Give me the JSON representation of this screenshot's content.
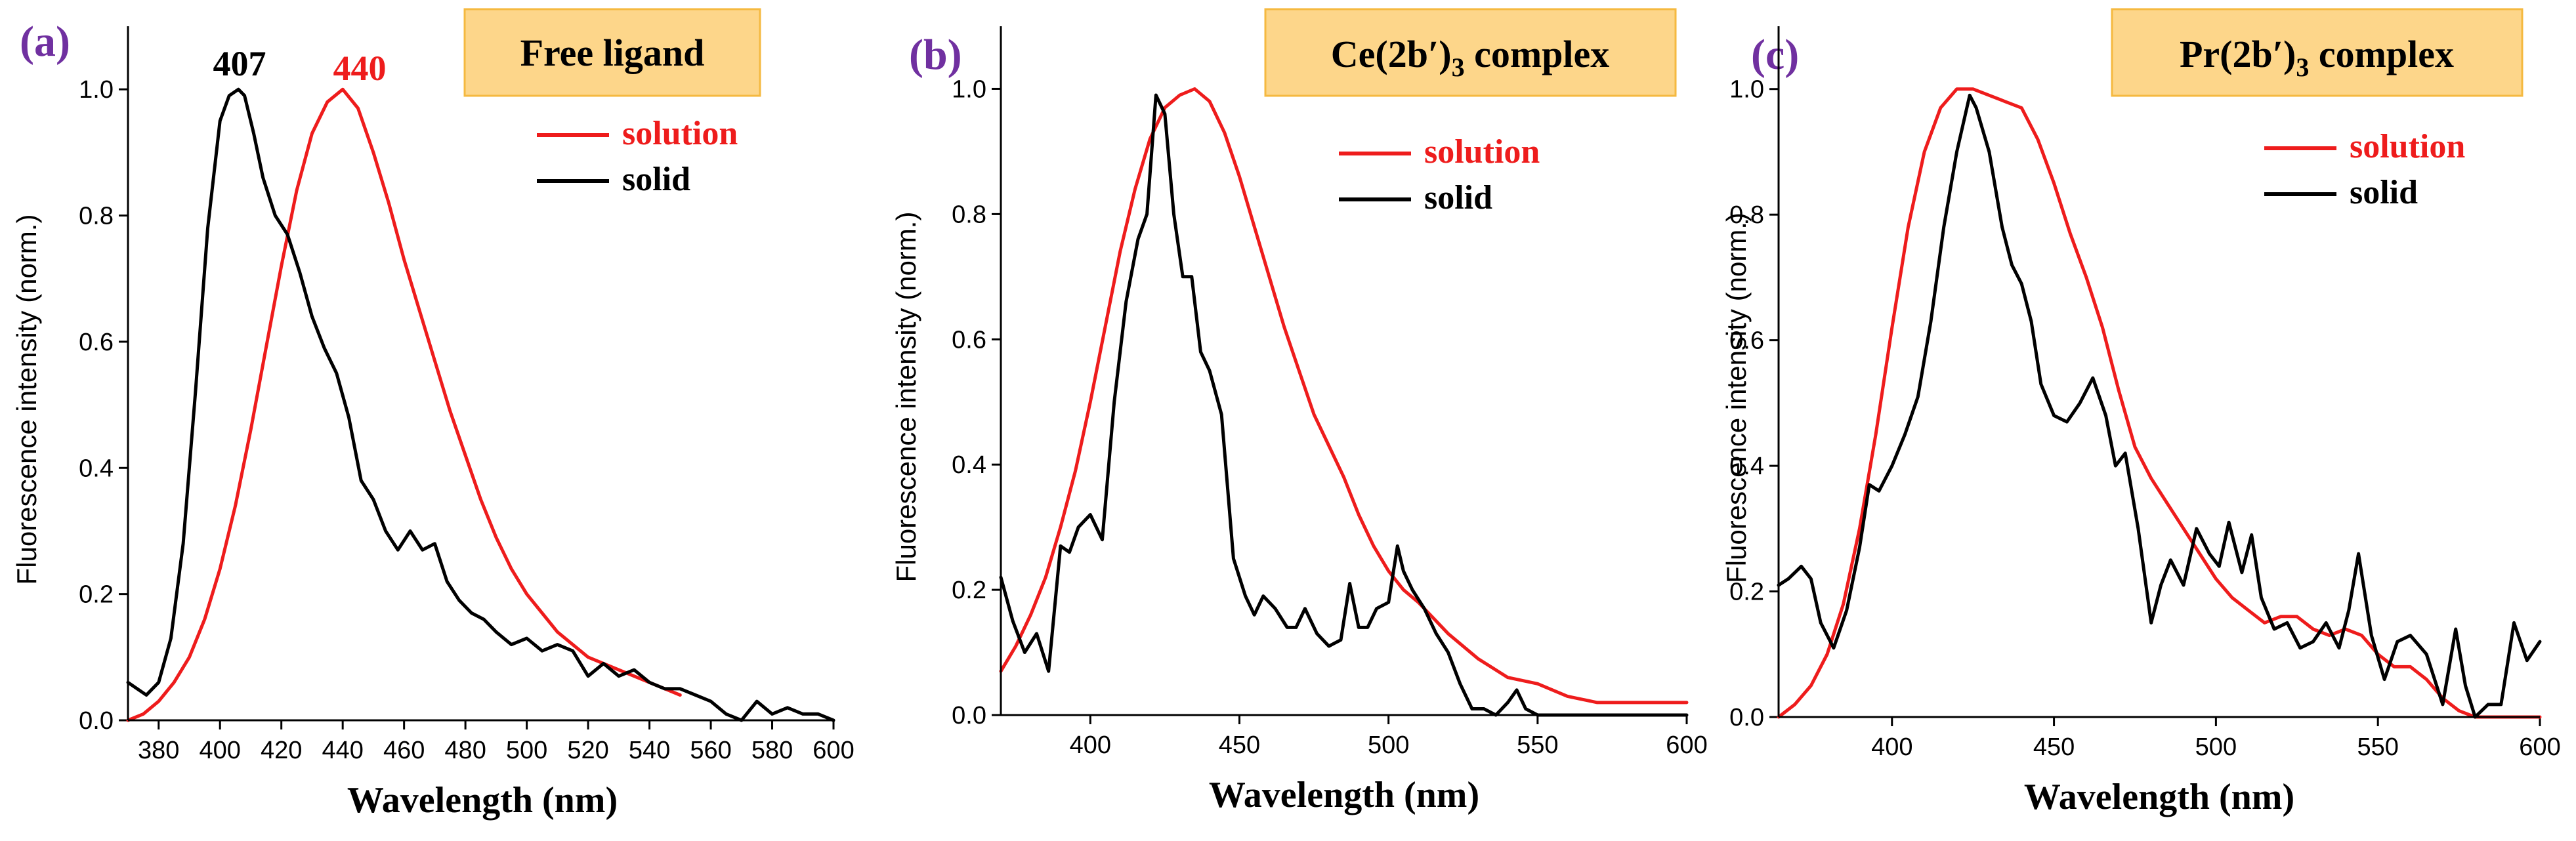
{
  "colors": {
    "solution": "#ee1c1c",
    "solid": "#000000",
    "panel_label": "#7030a0",
    "title_box_fill": "#fdd68a",
    "title_box_stroke": "#f5b940",
    "axis": "#000000"
  },
  "chart_data": [
    {
      "type": "line",
      "panel_label": "(a)",
      "title": "Free ligand",
      "xlabel": "Wavelength (nm)",
      "ylabel": "Fluorescence intensity (norm.)",
      "xlim": [
        370,
        600
      ],
      "ylim": [
        0,
        1.1
      ],
      "xticks": [
        380,
        400,
        420,
        440,
        460,
        480,
        500,
        520,
        540,
        560,
        580,
        600
      ],
      "yticks": [
        0.0,
        0.2,
        0.4,
        0.6,
        0.8,
        1.0
      ],
      "xtick_labels": [
        "380",
        "400",
        "420",
        "440",
        "460",
        "480",
        "500",
        "520",
        "540",
        "560",
        "580",
        "600"
      ],
      "ytick_labels": [
        "0.0",
        "0.2",
        "0.4",
        "0.6",
        "0.8",
        "1.0"
      ],
      "annotations": [
        {
          "text": "407",
          "color": "solid",
          "x": 407,
          "y": 1.07
        },
        {
          "text": "440",
          "color": "solution",
          "x": 440,
          "y": 1.07
        }
      ],
      "legend": [
        {
          "name": "solution",
          "color": "solution"
        },
        {
          "name": "solid",
          "color": "solid"
        }
      ],
      "legend_position": "top-right",
      "series": [
        {
          "name": "solution",
          "x": [
            370,
            375,
            380,
            385,
            390,
            395,
            400,
            405,
            410,
            415,
            420,
            425,
            430,
            435,
            440,
            445,
            450,
            455,
            460,
            465,
            470,
            475,
            480,
            485,
            490,
            495,
            500,
            505,
            510,
            515,
            520,
            525,
            530,
            535,
            540,
            545,
            550
          ],
          "y": [
            0.0,
            0.01,
            0.03,
            0.06,
            0.1,
            0.16,
            0.24,
            0.34,
            0.46,
            0.59,
            0.72,
            0.84,
            0.93,
            0.98,
            1.0,
            0.97,
            0.9,
            0.82,
            0.73,
            0.65,
            0.57,
            0.49,
            0.42,
            0.35,
            0.29,
            0.24,
            0.2,
            0.17,
            0.14,
            0.12,
            0.1,
            0.09,
            0.08,
            0.07,
            0.06,
            0.05,
            0.04
          ]
        },
        {
          "name": "solid",
          "x": [
            370,
            373,
            376,
            380,
            384,
            388,
            392,
            396,
            400,
            403,
            406,
            408,
            411,
            414,
            418,
            422,
            426,
            430,
            434,
            438,
            442,
            446,
            450,
            454,
            458,
            462,
            466,
            470,
            474,
            478,
            482,
            486,
            490,
            495,
            500,
            505,
            510,
            515,
            520,
            525,
            530,
            535,
            540,
            545,
            550,
            555,
            560,
            565,
            570,
            575,
            580,
            585,
            590,
            595,
            600
          ],
          "y": [
            0.06,
            0.05,
            0.04,
            0.06,
            0.13,
            0.28,
            0.52,
            0.78,
            0.95,
            0.99,
            1.0,
            0.99,
            0.93,
            0.86,
            0.8,
            0.77,
            0.71,
            0.64,
            0.59,
            0.55,
            0.48,
            0.38,
            0.35,
            0.3,
            0.27,
            0.3,
            0.27,
            0.28,
            0.22,
            0.19,
            0.17,
            0.16,
            0.14,
            0.12,
            0.13,
            0.11,
            0.12,
            0.11,
            0.07,
            0.09,
            0.07,
            0.08,
            0.06,
            0.05,
            0.05,
            0.04,
            0.03,
            0.01,
            0.0,
            0.03,
            0.01,
            0.02,
            0.01,
            0.01,
            0.0
          ]
        }
      ]
    },
    {
      "type": "line",
      "panel_label": "(b)",
      "title_parts": [
        "Ce(2b′)",
        "3",
        " complex"
      ],
      "xlabel": "Wavelength (nm)",
      "ylabel": "Fluorescence intensity (norm.)",
      "xlim": [
        370,
        600
      ],
      "ylim": [
        0,
        1.1
      ],
      "xticks": [
        400,
        450,
        500,
        550,
        600
      ],
      "yticks": [
        0.0,
        0.2,
        0.4,
        0.6,
        0.8,
        1.0
      ],
      "xtick_labels": [
        "400",
        "450",
        "500",
        "550",
        "600"
      ],
      "ytick_labels": [
        "0.0",
        "0.2",
        "0.4",
        "0.6",
        "0.8",
        "1.0"
      ],
      "legend": [
        {
          "name": "solution",
          "color": "solution"
        },
        {
          "name": "solid",
          "color": "solid"
        }
      ],
      "legend_position": "top-right",
      "series": [
        {
          "name": "solution",
          "x": [
            370,
            375,
            380,
            385,
            390,
            395,
            400,
            405,
            410,
            415,
            420,
            425,
            430,
            435,
            440,
            445,
            450,
            455,
            460,
            465,
            470,
            475,
            480,
            485,
            490,
            495,
            500,
            505,
            510,
            520,
            530,
            540,
            550,
            560,
            570,
            580,
            590,
            600
          ],
          "y": [
            0.07,
            0.11,
            0.16,
            0.22,
            0.3,
            0.39,
            0.5,
            0.62,
            0.74,
            0.84,
            0.92,
            0.97,
            0.99,
            1.0,
            0.98,
            0.93,
            0.86,
            0.78,
            0.7,
            0.62,
            0.55,
            0.48,
            0.43,
            0.38,
            0.32,
            0.27,
            0.23,
            0.2,
            0.18,
            0.13,
            0.09,
            0.06,
            0.05,
            0.03,
            0.02,
            0.02,
            0.02,
            0.02
          ]
        },
        {
          "name": "solid",
          "x": [
            370,
            374,
            378,
            382,
            386,
            390,
            393,
            396,
            400,
            404,
            408,
            412,
            416,
            419,
            422,
            425,
            428,
            431,
            434,
            437,
            440,
            444,
            448,
            452,
            455,
            458,
            462,
            466,
            469,
            472,
            476,
            480,
            484,
            487,
            490,
            493,
            496,
            500,
            503,
            505,
            508,
            512,
            516,
            520,
            524,
            528,
            532,
            536,
            540,
            543,
            546,
            550,
            560,
            570,
            580,
            590,
            600
          ],
          "y": [
            0.22,
            0.15,
            0.1,
            0.13,
            0.07,
            0.27,
            0.26,
            0.3,
            0.32,
            0.28,
            0.5,
            0.66,
            0.76,
            0.8,
            0.99,
            0.96,
            0.8,
            0.7,
            0.7,
            0.58,
            0.55,
            0.48,
            0.25,
            0.19,
            0.16,
            0.19,
            0.17,
            0.14,
            0.14,
            0.17,
            0.13,
            0.11,
            0.12,
            0.21,
            0.14,
            0.14,
            0.17,
            0.18,
            0.27,
            0.23,
            0.2,
            0.17,
            0.13,
            0.1,
            0.05,
            0.01,
            0.01,
            0.0,
            0.02,
            0.04,
            0.01,
            0.0,
            0.0,
            0.0,
            0.0,
            0.0,
            0.0
          ]
        }
      ]
    },
    {
      "type": "line",
      "panel_label": "(c)",
      "title_parts": [
        "Pr(2b′)",
        "3",
        " complex"
      ],
      "xlabel": "Wavelength (nm)",
      "ylabel": "Fluorescence intensity (norm.)",
      "xlim": [
        365,
        600
      ],
      "ylim": [
        0,
        1.1
      ],
      "xticks": [
        400,
        450,
        500,
        550,
        600
      ],
      "yticks": [
        0.0,
        0.2,
        0.4,
        0.6,
        0.8,
        1.0
      ],
      "xtick_labels": [
        "400",
        "450",
        "500",
        "550",
        "600"
      ],
      "ytick_labels": [
        "0.0",
        "0.2",
        "0.4",
        "0.6",
        "0.8",
        "1.0"
      ],
      "legend": [
        {
          "name": "solution",
          "color": "solution"
        },
        {
          "name": "solid",
          "color": "solid"
        }
      ],
      "legend_position": "top-right",
      "series": [
        {
          "name": "solution",
          "x": [
            365,
            370,
            375,
            380,
            385,
            390,
            395,
            400,
            405,
            410,
            415,
            420,
            425,
            430,
            435,
            440,
            445,
            450,
            455,
            460,
            465,
            470,
            475,
            480,
            485,
            490,
            495,
            500,
            505,
            510,
            515,
            520,
            525,
            530,
            535,
            540,
            545,
            550,
            555,
            560,
            565,
            570,
            575,
            580,
            585,
            590,
            595,
            600
          ],
          "y": [
            0.0,
            0.02,
            0.05,
            0.1,
            0.18,
            0.3,
            0.45,
            0.62,
            0.78,
            0.9,
            0.97,
            1.0,
            1.0,
            0.99,
            0.98,
            0.97,
            0.92,
            0.85,
            0.77,
            0.7,
            0.62,
            0.52,
            0.43,
            0.38,
            0.34,
            0.3,
            0.26,
            0.22,
            0.19,
            0.17,
            0.15,
            0.16,
            0.16,
            0.14,
            0.13,
            0.14,
            0.13,
            0.1,
            0.08,
            0.08,
            0.06,
            0.03,
            0.01,
            0.0,
            0.0,
            0.0,
            0.0,
            0.0
          ]
        },
        {
          "name": "solid",
          "x": [
            365,
            368,
            372,
            375,
            378,
            382,
            386,
            390,
            393,
            396,
            400,
            404,
            408,
            412,
            416,
            420,
            424,
            426,
            430,
            434,
            437,
            440,
            443,
            446,
            450,
            454,
            458,
            462,
            466,
            469,
            472,
            476,
            480,
            483,
            486,
            490,
            494,
            498,
            501,
            504,
            508,
            511,
            514,
            518,
            522,
            526,
            530,
            534,
            538,
            541,
            544,
            548,
            552,
            556,
            560,
            565,
            570,
            574,
            577,
            580,
            584,
            588,
            592,
            596,
            600
          ],
          "y": [
            0.21,
            0.22,
            0.24,
            0.22,
            0.15,
            0.11,
            0.17,
            0.27,
            0.37,
            0.36,
            0.4,
            0.45,
            0.51,
            0.63,
            0.78,
            0.9,
            0.99,
            0.97,
            0.9,
            0.78,
            0.72,
            0.69,
            0.63,
            0.53,
            0.48,
            0.47,
            0.5,
            0.54,
            0.48,
            0.4,
            0.42,
            0.3,
            0.15,
            0.21,
            0.25,
            0.21,
            0.3,
            0.26,
            0.24,
            0.31,
            0.23,
            0.29,
            0.19,
            0.14,
            0.15,
            0.11,
            0.12,
            0.15,
            0.11,
            0.17,
            0.26,
            0.13,
            0.06,
            0.12,
            0.13,
            0.1,
            0.02,
            0.14,
            0.05,
            0.0,
            0.02,
            0.02,
            0.15,
            0.09,
            0.12
          ]
        }
      ]
    }
  ]
}
